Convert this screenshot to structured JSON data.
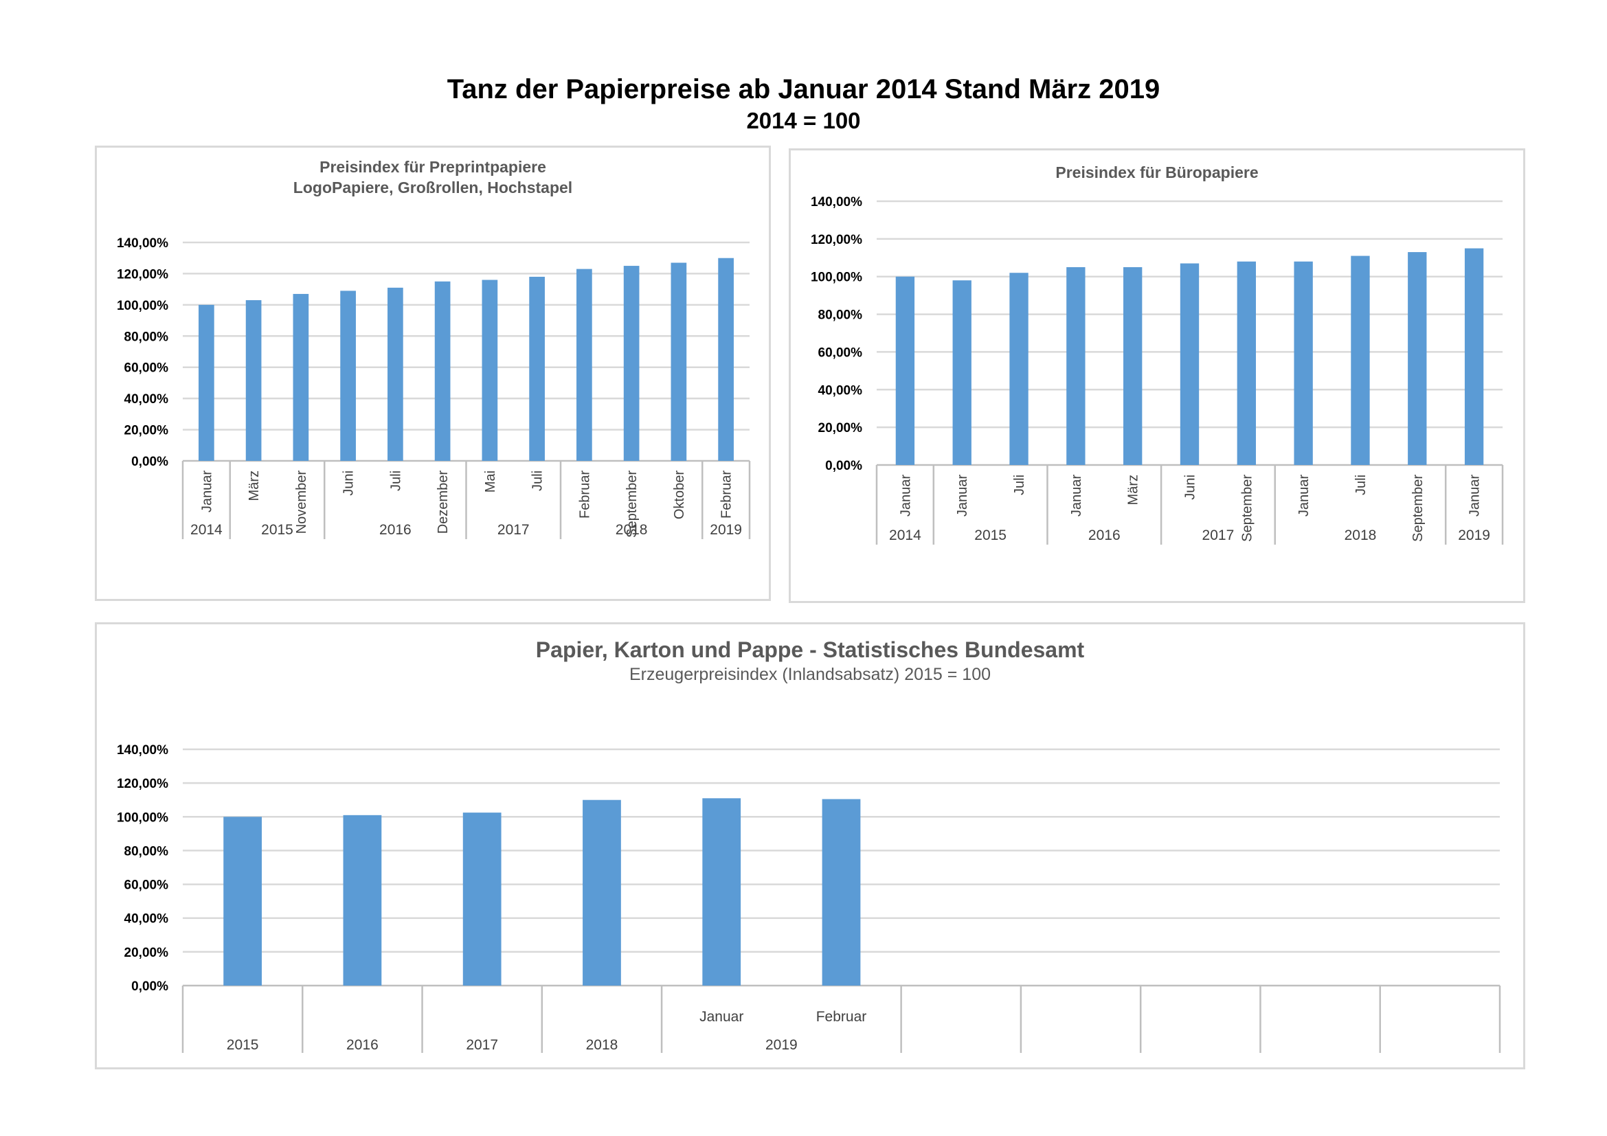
{
  "page": {
    "title": "Tanz der Papierpreise ab Januar 2014 Stand März 2019",
    "subtitle": "2014 = 100"
  },
  "colors": {
    "bar": "#5b9bd5",
    "grid": "#d9d9d9",
    "border": "#d9d9d9",
    "title_text": "#595959"
  },
  "chart_data": [
    {
      "id": "preprint",
      "type": "bar",
      "title": "Preisindex  für Preprintpapiere",
      "subtitle": "LogoPapiere, Großrollen, Hochstapel",
      "ylim": [
        0,
        140
      ],
      "yticks": [
        "0,00%",
        "20,00%",
        "40,00%",
        "60,00%",
        "80,00%",
        "100,00%",
        "120,00%",
        "140,00%"
      ],
      "grid": true,
      "categories": [
        "Januar",
        "März",
        "November",
        "Juni",
        "Juli",
        "Dezember",
        "Mai",
        "Juli",
        "Februar",
        "September",
        "Oktober",
        "Februar"
      ],
      "values": [
        100,
        103,
        107,
        109,
        111,
        115,
        116,
        118,
        123,
        125,
        127,
        130
      ],
      "groups": [
        {
          "label": "2014",
          "count": 1
        },
        {
          "label": "2015",
          "count": 2
        },
        {
          "label": "2016",
          "count": 3
        },
        {
          "label": "2017",
          "count": 2
        },
        {
          "label": "2018",
          "count": 3
        },
        {
          "label": "2019",
          "count": 1
        }
      ]
    },
    {
      "id": "buero",
      "type": "bar",
      "title": "Preisindex  für Büropapiere",
      "subtitle": "",
      "ylim": [
        0,
        140
      ],
      "yticks": [
        "0,00%",
        "20,00%",
        "40,00%",
        "60,00%",
        "80,00%",
        "100,00%",
        "120,00%",
        "140,00%"
      ],
      "grid": true,
      "categories": [
        "Januar",
        "Januar",
        "Juli",
        "Januar",
        "März",
        "Juni",
        "September",
        "Januar",
        "Juli",
        "September",
        "Januar"
      ],
      "values": [
        100,
        98,
        102,
        105,
        105,
        107,
        108,
        108,
        111,
        113,
        115
      ],
      "groups": [
        {
          "label": "2014",
          "count": 1
        },
        {
          "label": "2015",
          "count": 2
        },
        {
          "label": "2016",
          "count": 2
        },
        {
          "label": "2017",
          "count": 2
        },
        {
          "label": "2018",
          "count": 3
        },
        {
          "label": "2019",
          "count": 1
        }
      ]
    },
    {
      "id": "destatis",
      "type": "bar",
      "title": "Papier, Karton und Pappe - Statistisches Bundesamt",
      "subtitle": "Erzeugerpreisindex (Inlandsabsatz) 2015 = 100",
      "ylim": [
        0,
        140
      ],
      "yticks": [
        "0,00%",
        "20,00%",
        "40,00%",
        "60,00%",
        "80,00%",
        "100,00%",
        "120,00%",
        "140,00%"
      ],
      "grid": true,
      "categories": [
        "",
        "",
        "",
        "",
        "Januar",
        "Februar",
        "",
        "",
        "",
        "",
        ""
      ],
      "values": [
        100,
        101,
        102.5,
        110,
        111,
        110.5,
        null,
        null,
        null,
        null,
        null
      ],
      "groups": [
        {
          "label": "2015",
          "count": 1
        },
        {
          "label": "2016",
          "count": 1
        },
        {
          "label": "2017",
          "count": 1
        },
        {
          "label": "2018",
          "count": 1
        },
        {
          "label": "2019",
          "count": 2
        },
        {
          "label": "",
          "count": 1
        },
        {
          "label": "",
          "count": 1
        },
        {
          "label": "",
          "count": 1
        },
        {
          "label": "",
          "count": 1
        },
        {
          "label": "",
          "count": 1
        }
      ]
    }
  ]
}
